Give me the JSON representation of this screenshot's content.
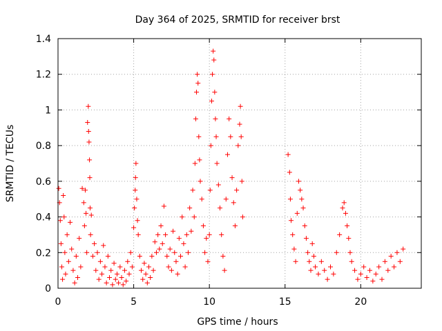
{
  "chart_data": {
    "type": "scatter",
    "title": "Day 364 of 2025, SRMTID for receiver brst",
    "xlabel": "GPS time / hours",
    "ylabel": "SRMTID / TECUs",
    "xlim": [
      0,
      24
    ],
    "ylim": [
      0,
      1.4
    ],
    "xticks": [
      0,
      5,
      10,
      15,
      20
    ],
    "yticks": [
      0,
      0.2,
      0.4,
      0.6,
      0.8,
      1,
      1.2,
      1.4
    ],
    "xtick_labels": [
      "0",
      "5",
      "10",
      "15",
      "20"
    ],
    "ytick_labels": [
      "0",
      "0.2",
      "0.4",
      "0.6",
      "0.8",
      "1",
      "1.2",
      "1.4"
    ],
    "grid": true,
    "marker": "+",
    "color": "#ff0000",
    "series": [
      {
        "name": "SRMTID",
        "points": [
          [
            0.05,
            0.56
          ],
          [
            0.1,
            0.48
          ],
          [
            0.15,
            0.38
          ],
          [
            0.2,
            0.25
          ],
          [
            0.25,
            0.12
          ],
          [
            0.3,
            0.05
          ],
          [
            0.35,
            0.52
          ],
          [
            0.4,
            0.4
          ],
          [
            0.45,
            0.2
          ],
          [
            0.5,
            0.08
          ],
          [
            0.6,
            0.3
          ],
          [
            0.7,
            0.15
          ],
          [
            0.8,
            0.37
          ],
          [
            0.9,
            0.22
          ],
          [
            1.0,
            0.1
          ],
          [
            1.1,
            0.03
          ],
          [
            1.2,
            0.18
          ],
          [
            1.3,
            0.06
          ],
          [
            1.4,
            0.28
          ],
          [
            1.5,
            0.12
          ],
          [
            1.6,
            0.56
          ],
          [
            1.7,
            0.48
          ],
          [
            1.75,
            0.35
          ],
          [
            1.8,
            0.55
          ],
          [
            1.85,
            0.42
          ],
          [
            1.9,
            0.2
          ],
          [
            1.95,
            0.93
          ],
          [
            2.0,
            1.02
          ],
          [
            2.02,
            0.88
          ],
          [
            2.05,
            0.82
          ],
          [
            2.08,
            0.72
          ],
          [
            2.1,
            0.62
          ],
          [
            2.12,
            0.45
          ],
          [
            2.15,
            0.3
          ],
          [
            2.2,
            0.41
          ],
          [
            2.3,
            0.18
          ],
          [
            2.4,
            0.25
          ],
          [
            2.5,
            0.1
          ],
          [
            2.6,
            0.2
          ],
          [
            2.7,
            0.05
          ],
          [
            2.8,
            0.15
          ],
          [
            2.9,
            0.08
          ],
          [
            3.0,
            0.24
          ],
          [
            3.1,
            0.12
          ],
          [
            3.2,
            0.03
          ],
          [
            3.3,
            0.18
          ],
          [
            3.4,
            0.06
          ],
          [
            3.5,
            0.1
          ],
          [
            3.6,
            0.02
          ],
          [
            3.7,
            0.14
          ],
          [
            3.8,
            0.05
          ],
          [
            3.9,
            0.08
          ],
          [
            4.0,
            0.03
          ],
          [
            4.1,
            0.12
          ],
          [
            4.2,
            0.06
          ],
          [
            4.3,
            0.02
          ],
          [
            4.4,
            0.1
          ],
          [
            4.5,
            0.04
          ],
          [
            4.6,
            0.15
          ],
          [
            4.7,
            0.08
          ],
          [
            4.8,
            0.2
          ],
          [
            4.9,
            0.12
          ],
          [
            5.0,
            0.34
          ],
          [
            5.05,
            0.45
          ],
          [
            5.1,
            0.55
          ],
          [
            5.12,
            0.62
          ],
          [
            5.15,
            0.7
          ],
          [
            5.2,
            0.5
          ],
          [
            5.25,
            0.38
          ],
          [
            5.3,
            0.3
          ],
          [
            5.4,
            0.18
          ],
          [
            5.5,
            0.1
          ],
          [
            5.6,
            0.05
          ],
          [
            5.7,
            0.14
          ],
          [
            5.8,
            0.08
          ],
          [
            5.9,
            0.03
          ],
          [
            6.0,
            0.12
          ],
          [
            6.1,
            0.06
          ],
          [
            6.2,
            0.18
          ],
          [
            6.3,
            0.1
          ],
          [
            6.4,
            0.26
          ],
          [
            6.5,
            0.2
          ],
          [
            6.6,
            0.3
          ],
          [
            6.7,
            0.22
          ],
          [
            6.8,
            0.35
          ],
          [
            6.9,
            0.25
          ],
          [
            7.0,
            0.46
          ],
          [
            7.1,
            0.3
          ],
          [
            7.2,
            0.18
          ],
          [
            7.3,
            0.12
          ],
          [
            7.4,
            0.22
          ],
          [
            7.5,
            0.1
          ],
          [
            7.6,
            0.32
          ],
          [
            7.7,
            0.2
          ],
          [
            7.8,
            0.15
          ],
          [
            7.9,
            0.08
          ],
          [
            8.0,
            0.28
          ],
          [
            8.1,
            0.18
          ],
          [
            8.2,
            0.4
          ],
          [
            8.3,
            0.25
          ],
          [
            8.4,
            0.12
          ],
          [
            8.5,
            0.3
          ],
          [
            8.6,
            0.2
          ],
          [
            8.7,
            0.45
          ],
          [
            8.8,
            0.32
          ],
          [
            8.9,
            0.55
          ],
          [
            9.0,
            0.4
          ],
          [
            9.05,
            0.7
          ],
          [
            9.1,
            0.95
          ],
          [
            9.15,
            1.1
          ],
          [
            9.2,
            1.2
          ],
          [
            9.25,
            1.15
          ],
          [
            9.3,
            0.85
          ],
          [
            9.35,
            0.72
          ],
          [
            9.4,
            0.6
          ],
          [
            9.5,
            0.5
          ],
          [
            9.6,
            0.35
          ],
          [
            9.7,
            0.2
          ],
          [
            9.8,
            0.28
          ],
          [
            9.9,
            0.15
          ],
          [
            10.0,
            0.3
          ],
          [
            10.05,
            0.55
          ],
          [
            10.1,
            0.8
          ],
          [
            10.15,
            1.05
          ],
          [
            10.2,
            1.2
          ],
          [
            10.25,
            1.33
          ],
          [
            10.3,
            1.28
          ],
          [
            10.35,
            1.1
          ],
          [
            10.4,
            0.95
          ],
          [
            10.45,
            0.85
          ],
          [
            10.5,
            0.7
          ],
          [
            10.6,
            0.58
          ],
          [
            10.7,
            0.45
          ],
          [
            10.8,
            0.3
          ],
          [
            10.9,
            0.18
          ],
          [
            11.0,
            0.1
          ],
          [
            11.1,
            0.5
          ],
          [
            11.2,
            0.75
          ],
          [
            11.3,
            0.95
          ],
          [
            11.4,
            0.85
          ],
          [
            11.5,
            0.62
          ],
          [
            11.6,
            0.48
          ],
          [
            11.7,
            0.35
          ],
          [
            11.8,
            0.55
          ],
          [
            11.9,
            0.8
          ],
          [
            12.0,
            0.92
          ],
          [
            12.05,
            1.02
          ],
          [
            12.1,
            0.85
          ],
          [
            12.15,
            0.6
          ],
          [
            12.2,
            0.4
          ],
          [
            15.2,
            0.75
          ],
          [
            15.3,
            0.65
          ],
          [
            15.35,
            0.5
          ],
          [
            15.4,
            0.38
          ],
          [
            15.5,
            0.3
          ],
          [
            15.6,
            0.22
          ],
          [
            15.7,
            0.15
          ],
          [
            15.8,
            0.42
          ],
          [
            15.9,
            0.6
          ],
          [
            16.0,
            0.55
          ],
          [
            16.1,
            0.5
          ],
          [
            16.2,
            0.45
          ],
          [
            16.3,
            0.35
          ],
          [
            16.4,
            0.28
          ],
          [
            16.5,
            0.2
          ],
          [
            16.6,
            0.15
          ],
          [
            16.7,
            0.1
          ],
          [
            16.8,
            0.25
          ],
          [
            16.9,
            0.18
          ],
          [
            17.0,
            0.12
          ],
          [
            17.2,
            0.08
          ],
          [
            17.4,
            0.15
          ],
          [
            17.6,
            0.1
          ],
          [
            17.8,
            0.05
          ],
          [
            18.0,
            0.12
          ],
          [
            18.2,
            0.08
          ],
          [
            18.4,
            0.2
          ],
          [
            18.6,
            0.3
          ],
          [
            18.8,
            0.45
          ],
          [
            18.9,
            0.48
          ],
          [
            19.0,
            0.42
          ],
          [
            19.1,
            0.35
          ],
          [
            19.2,
            0.28
          ],
          [
            19.3,
            0.2
          ],
          [
            19.4,
            0.15
          ],
          [
            19.6,
            0.1
          ],
          [
            19.8,
            0.05
          ],
          [
            20.0,
            0.08
          ],
          [
            20.2,
            0.12
          ],
          [
            20.4,
            0.06
          ],
          [
            20.6,
            0.1
          ],
          [
            20.8,
            0.04
          ],
          [
            21.0,
            0.08
          ],
          [
            21.2,
            0.12
          ],
          [
            21.4,
            0.05
          ],
          [
            21.6,
            0.15
          ],
          [
            21.8,
            0.1
          ],
          [
            22.0,
            0.18
          ],
          [
            22.2,
            0.12
          ],
          [
            22.4,
            0.2
          ],
          [
            22.6,
            0.15
          ],
          [
            22.8,
            0.22
          ]
        ]
      }
    ]
  }
}
